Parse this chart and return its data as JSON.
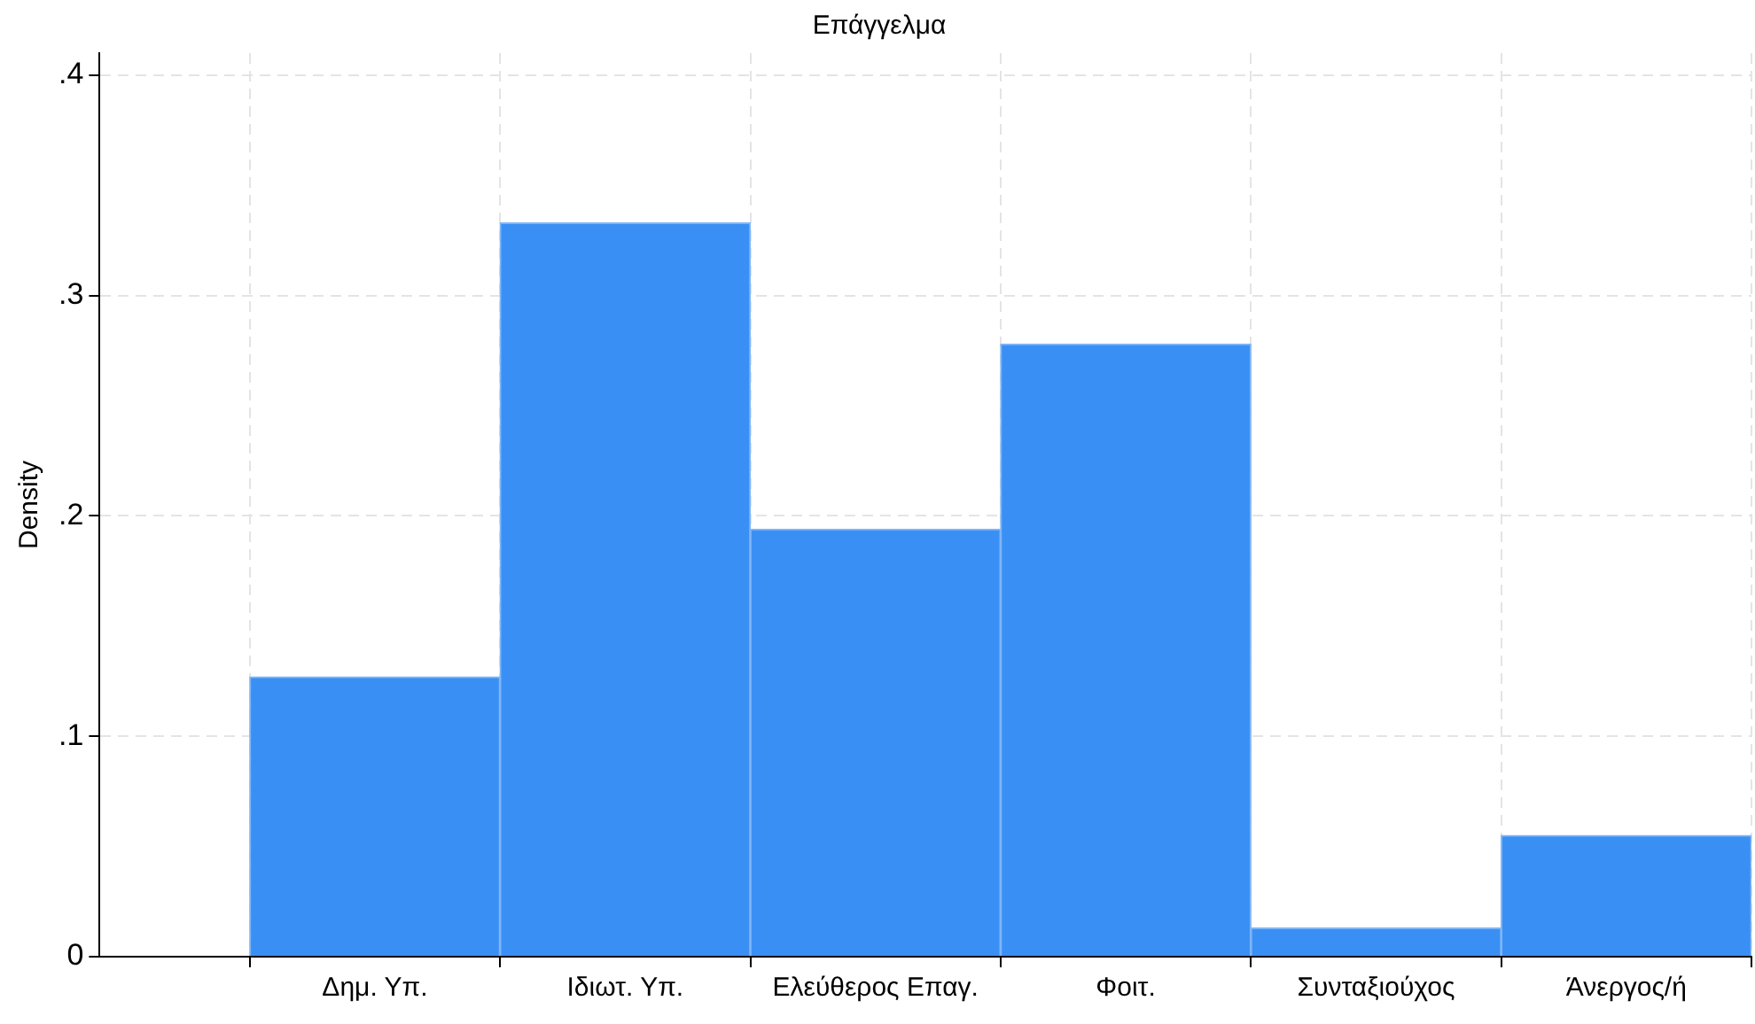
{
  "chart_data": {
    "type": "bar",
    "title": "Επάγγελμα",
    "ylabel": "Density",
    "categories": [
      "Δημ. Υπ.",
      "Ιδιωτ. Υπ.",
      "Ελεύθερος Επαγ.",
      "Φοιτ.",
      "Συνταξιούχος",
      "Άνεργος/ή"
    ],
    "values": [
      0.127,
      0.333,
      0.194,
      0.278,
      0.013,
      0.055
    ],
    "color": "#3a8ff5",
    "ylim": [
      0,
      0.41
    ],
    "yticks": [
      {
        "value": 0,
        "label": "0"
      },
      {
        "value": 0.1,
        "label": ".1"
      },
      {
        "value": 0.2,
        "label": ".2"
      },
      {
        "value": 0.3,
        "label": ".3"
      },
      {
        "value": 0.4,
        "label": ".4"
      }
    ],
    "grid": true,
    "legend": false
  }
}
